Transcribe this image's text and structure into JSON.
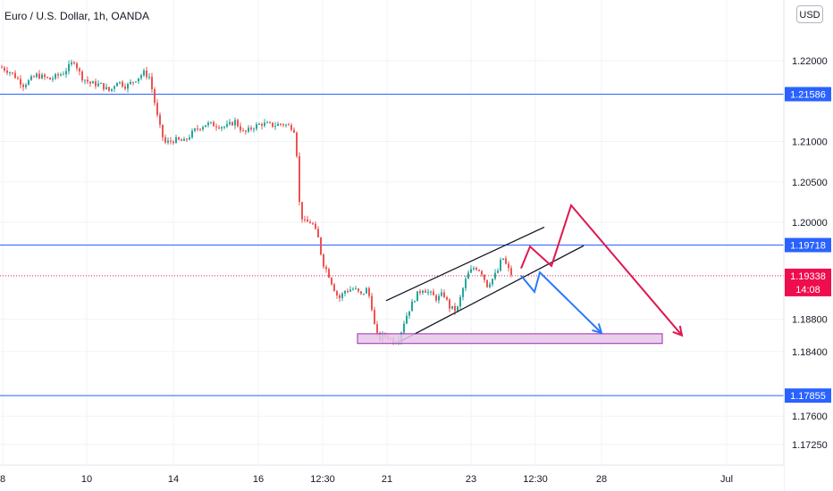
{
  "header": {
    "title": "Euro / U.S. Dollar, 1h, OANDA",
    "currency_button": "USD"
  },
  "colors": {
    "up": "#26a69a",
    "down": "#ef5350",
    "hline": "#2962ff",
    "current_line": "#e91e63",
    "current_label_bg": "#ef0d4e",
    "red_arrow": "#e0174e",
    "blue_arrow": "#2979ff",
    "zone_fill": "#e6c7ea",
    "zone_stroke": "#9c27b0",
    "axis_text": "#131722"
  },
  "chart_data": {
    "type": "candlestick",
    "symbol": "Euro / U.S. Dollar",
    "interval": "1h",
    "source": "OANDA",
    "y_ticks": [
      "1.22000",
      "1.21000",
      "1.20500",
      "1.20000",
      "1.18800",
      "1.18400",
      "1.17600",
      "1.17250"
    ],
    "x_ticks": [
      "8",
      "10",
      "14",
      "16",
      "12:30",
      "21",
      "23",
      "12:30",
      "28",
      "Jul"
    ],
    "ylim": [
      1.1705,
      1.2245
    ],
    "horizontal_levels": [
      "1.21586",
      "1.19718",
      "1.17855"
    ],
    "current_price": "1.19338",
    "countdown": "14:08",
    "price_path": [
      [
        0,
        1.2192
      ],
      [
        12,
        1.2185
      ],
      [
        25,
        1.217
      ],
      [
        40,
        1.2182
      ],
      [
        55,
        1.2177
      ],
      [
        70,
        1.2185
      ],
      [
        82,
        1.22
      ],
      [
        90,
        1.218
      ],
      [
        100,
        1.2172
      ],
      [
        112,
        1.217
      ],
      [
        122,
        1.2162
      ],
      [
        130,
        1.2175
      ],
      [
        140,
        1.2168
      ],
      [
        152,
        1.2178
      ],
      [
        160,
        1.2185
      ],
      [
        166,
        1.218
      ],
      [
        170,
        1.216
      ],
      [
        176,
        1.2125
      ],
      [
        183,
        1.2098
      ],
      [
        195,
        1.2102
      ],
      [
        205,
        1.21
      ],
      [
        218,
        1.2115
      ],
      [
        230,
        1.2122
      ],
      [
        242,
        1.212
      ],
      [
        252,
        1.2118
      ],
      [
        262,
        1.2125
      ],
      [
        272,
        1.211
      ],
      [
        282,
        1.2118
      ],
      [
        292,
        1.2122
      ],
      [
        305,
        1.212
      ],
      [
        315,
        1.2122
      ],
      [
        325,
        1.2118
      ],
      [
        330,
        1.2112
      ],
      [
        333,
        1.203
      ],
      [
        338,
        1.2
      ],
      [
        348,
        1.2
      ],
      [
        355,
        1.198
      ],
      [
        360,
        1.195
      ],
      [
        365,
        1.194
      ],
      [
        372,
        1.192
      ],
      [
        378,
        1.1905
      ],
      [
        385,
        1.1915
      ],
      [
        395,
        1.1918
      ],
      [
        403,
        1.191
      ],
      [
        410,
        1.1918
      ],
      [
        415,
        1.1895
      ],
      [
        419,
        1.1865
      ],
      [
        423,
        1.1855
      ],
      [
        428,
        1.186
      ],
      [
        434,
        1.1858
      ],
      [
        440,
        1.1852
      ],
      [
        446,
        1.1858
      ],
      [
        452,
        1.188
      ],
      [
        458,
        1.1895
      ],
      [
        465,
        1.191
      ],
      [
        472,
        1.1918
      ],
      [
        480,
        1.1912
      ],
      [
        488,
        1.1905
      ],
      [
        495,
        1.1912
      ],
      [
        502,
        1.1895
      ],
      [
        510,
        1.189
      ],
      [
        517,
        1.1918
      ],
      [
        522,
        1.1935
      ],
      [
        530,
        1.1945
      ],
      [
        537,
        1.194
      ],
      [
        544,
        1.1922
      ],
      [
        550,
        1.193
      ],
      [
        556,
        1.194
      ],
      [
        561,
        1.1958
      ],
      [
        566,
        1.1945
      ],
      [
        572,
        1.1934
      ]
    ],
    "annotations": [
      {
        "kind": "channel",
        "points": [
          [
            432,
            1.1903
          ],
          [
            609,
            1.1994
          ]
        ]
      },
      {
        "kind": "channel",
        "points": [
          [
            447,
            1.1852
          ],
          [
            653,
            1.1971
          ]
        ]
      },
      {
        "kind": "zone",
        "y": [
          1.1862,
          1.185
        ],
        "x": [
          400,
          741
        ]
      },
      {
        "kind": "red_path",
        "points": [
          [
            583,
            1.1943
          ],
          [
            593,
            1.197
          ],
          [
            617,
            1.1946
          ],
          [
            639,
            1.2021
          ],
          [
            763,
            1.186
          ]
        ]
      },
      {
        "kind": "blue_path",
        "points": [
          [
            583,
            1.1934
          ],
          [
            598,
            1.1914
          ],
          [
            604,
            1.1938
          ],
          [
            673,
            1.1863
          ]
        ]
      }
    ]
  }
}
